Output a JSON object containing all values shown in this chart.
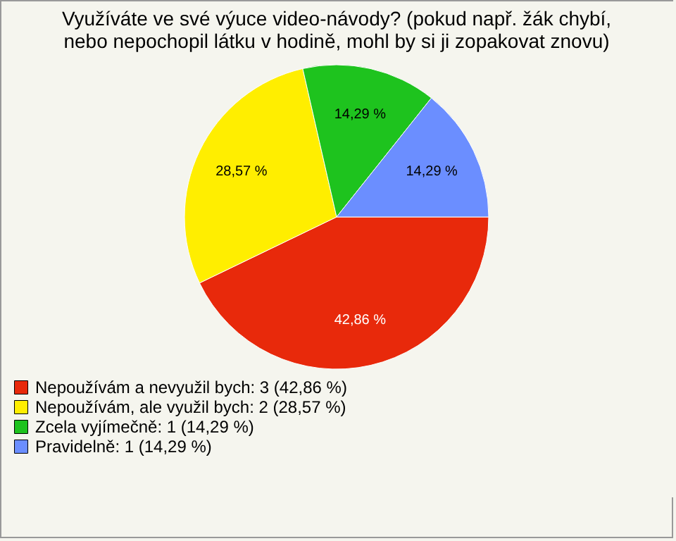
{
  "chart_data": {
    "type": "pie",
    "title": "Využíváte ve své výuce video-návody? (pokud např. žák chybí, nebo nepochopil látku v hodině, mohl by si ji zopakovat znovu)",
    "categories": [
      "Nepoužívám a nevyužil bych: 3 (42,86 %)",
      "Nepoužívám, ale využil bych: 2 (28,57 %)",
      "Zcela vyjímečně: 1 (14,29 %)",
      "Pravidelně: 1 (14,29 %)"
    ],
    "values": [
      42.86,
      28.57,
      14.29,
      14.29
    ],
    "value_labels": [
      "42,86 %",
      "28,57 %",
      "14,29 %",
      "14,29 %"
    ],
    "colors": [
      "#e8290b",
      "#ffee00",
      "#1ec31e",
      "#6b8eff"
    ],
    "legend": "bottom left"
  }
}
